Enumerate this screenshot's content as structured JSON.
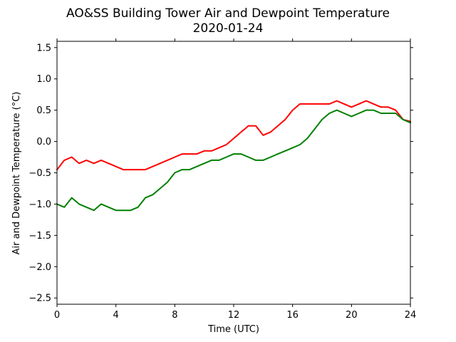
{
  "chart_data": {
    "type": "line",
    "title": "AO&SS Building Tower Air and Dewpoint Temperature",
    "subtitle": "2020-01-24",
    "xlabel": "Time (UTC)",
    "ylabel": "Air and Dewpoint Temperature (°C)",
    "xlim": [
      0,
      24
    ],
    "ylim": [
      -2.6,
      1.6
    ],
    "xticks": [
      0,
      4,
      8,
      12,
      16,
      20,
      24
    ],
    "yticks": [
      -2.5,
      -2.0,
      -1.5,
      -1.0,
      -0.5,
      0.0,
      0.5,
      1.0,
      1.5
    ],
    "ytick_labels": [
      "−2.5",
      "−2.0",
      "−1.5",
      "−1.0",
      "−0.5",
      "0.0",
      "0.5",
      "1.0",
      "1.5"
    ],
    "grid": false,
    "legend": "none",
    "series": [
      {
        "color": "#ff0000",
        "x": [
          0,
          0.5,
          1,
          1.5,
          2,
          2.5,
          3,
          3.5,
          4,
          4.5,
          5,
          5.5,
          6,
          6.5,
          7,
          7.5,
          8,
          8.5,
          9,
          9.5,
          10,
          10.5,
          11,
          11.5,
          12,
          12.5,
          13,
          13.5,
          14,
          14.5,
          15,
          15.5,
          16,
          16.5,
          17,
          17.5,
          18,
          18.5,
          19,
          19.5,
          20,
          20.5,
          21,
          21.5,
          22,
          22.5,
          23,
          23.5,
          24
        ],
        "values": [
          -0.45,
          -0.3,
          -0.25,
          -0.35,
          -0.3,
          -0.35,
          -0.3,
          -0.35,
          -0.4,
          -0.45,
          -0.45,
          -0.45,
          -0.45,
          -0.4,
          -0.35,
          -0.3,
          -0.25,
          -0.2,
          -0.2,
          -0.2,
          -0.15,
          -0.15,
          -0.1,
          -0.05,
          0.05,
          0.15,
          0.25,
          0.25,
          0.1,
          0.15,
          0.25,
          0.35,
          0.5,
          0.6,
          0.6,
          0.6,
          0.6,
          0.6,
          0.65,
          0.6,
          0.55,
          0.6,
          0.65,
          0.6,
          0.55,
          0.55,
          0.5,
          0.35,
          0.32
        ]
      },
      {
        "color": "#008000",
        "x": [
          0,
          0.5,
          1,
          1.5,
          2,
          2.5,
          3,
          3.5,
          4,
          4.5,
          5,
          5.5,
          6,
          6.5,
          7,
          7.5,
          8,
          8.5,
          9,
          9.5,
          10,
          10.5,
          11,
          11.5,
          12,
          12.5,
          13,
          13.5,
          14,
          14.5,
          15,
          15.5,
          16,
          16.5,
          17,
          17.5,
          18,
          18.5,
          19,
          19.5,
          20,
          20.5,
          21,
          21.5,
          22,
          22.5,
          23,
          23.5,
          24
        ],
        "values": [
          -1.0,
          -1.05,
          -0.9,
          -1.0,
          -1.05,
          -1.1,
          -1.0,
          -1.05,
          -1.1,
          -1.1,
          -1.1,
          -1.05,
          -0.9,
          -0.85,
          -0.75,
          -0.65,
          -0.5,
          -0.45,
          -0.45,
          -0.4,
          -0.35,
          -0.3,
          -0.3,
          -0.25,
          -0.2,
          -0.2,
          -0.25,
          -0.3,
          -0.3,
          -0.25,
          -0.2,
          -0.15,
          -0.1,
          -0.05,
          0.05,
          0.2,
          0.35,
          0.45,
          0.5,
          0.45,
          0.4,
          0.45,
          0.5,
          0.5,
          0.45,
          0.45,
          0.45,
          0.35,
          0.3
        ]
      }
    ]
  }
}
